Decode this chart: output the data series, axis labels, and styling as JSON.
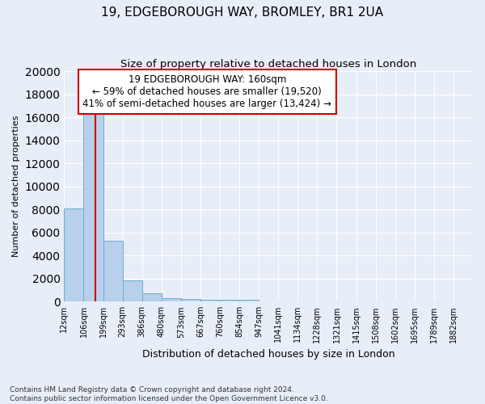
{
  "title1": "19, EDGEBOROUGH WAY, BROMLEY, BR1 2UA",
  "title2": "Size of property relative to detached houses in London",
  "xlabel": "Distribution of detached houses by size in London",
  "ylabel": "Number of detached properties",
  "bin_labels": [
    "12sqm",
    "106sqm",
    "199sqm",
    "293sqm",
    "386sqm",
    "480sqm",
    "573sqm",
    "667sqm",
    "760sqm",
    "854sqm",
    "947sqm",
    "1041sqm",
    "1134sqm",
    "1228sqm",
    "1321sqm",
    "1415sqm",
    "1508sqm",
    "1602sqm",
    "1695sqm",
    "1789sqm",
    "1882sqm"
  ],
  "bar_heights": [
    8100,
    16500,
    5300,
    1850,
    700,
    300,
    230,
    190,
    175,
    160,
    0,
    0,
    0,
    0,
    0,
    0,
    0,
    0,
    0,
    0,
    0
  ],
  "bar_color": "#b8d0eb",
  "bar_edge_color": "#6aaed6",
  "bg_color": "#e8eef8",
  "grid_color": "#ffffff",
  "vline_pos": 1.6,
  "vline_color": "#cc0000",
  "annotation_title": "19 EDGEBOROUGH WAY: 160sqm",
  "annotation_line1": "← 59% of detached houses are smaller (19,520)",
  "annotation_line2": "41% of semi-detached houses are larger (13,424) →",
  "annotation_box_color": "#ffffff",
  "annotation_box_edge": "#cc0000",
  "ylim": [
    0,
    20000
  ],
  "yticks": [
    0,
    2000,
    4000,
    6000,
    8000,
    10000,
    12000,
    14000,
    16000,
    18000,
    20000
  ],
  "footnote1": "Contains HM Land Registry data © Crown copyright and database right 2024.",
  "footnote2": "Contains public sector information licensed under the Open Government Licence v3.0."
}
